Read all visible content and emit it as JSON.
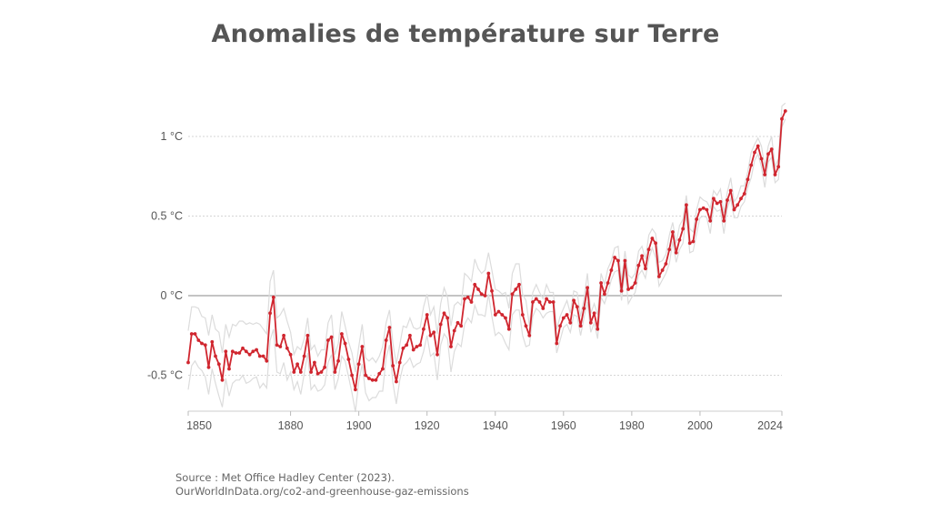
{
  "title": "Anomalies de température sur Terre",
  "source_line1": "Source : Met Office Hadley Center (2023).",
  "source_line2": "OurWorldInData.org/co2-and-greenhouse-gaz-emissions",
  "colors": {
    "line": "#d0262f",
    "band": "#dcdcdc",
    "grid": "#d5d5d5",
    "zero": "#b0b0b0",
    "text": "#555555"
  },
  "chart_data": {
    "type": "line",
    "title": "Anomalies de température sur Terre",
    "xlabel": "",
    "ylabel": "",
    "xlim": [
      1850,
      2024
    ],
    "ylim": [
      -0.7,
      1.4
    ],
    "yticks": [
      -0.5,
      0,
      0.5,
      1
    ],
    "ytick_labels": [
      "-0.5 °C",
      "0 °C",
      "0.5 °C",
      "1 °C"
    ],
    "xticks": [
      1850,
      1880,
      1900,
      1920,
      1940,
      1960,
      1980,
      2000,
      2024
    ],
    "xtick_labels": [
      "1850",
      "1880",
      "1900",
      "1920",
      "1940",
      "1960",
      "1980",
      "2000",
      "2024"
    ],
    "grid": "horizontal dotted",
    "uncertainty_band": true,
    "x_start": 1850,
    "series": [
      {
        "values": [
          -0.42,
          -0.24,
          -0.24,
          -0.28,
          -0.3,
          -0.31,
          -0.45,
          -0.29,
          -0.38,
          -0.43,
          -0.53,
          -0.35,
          -0.46,
          -0.35,
          -0.36,
          -0.36,
          -0.33,
          -0.35,
          -0.37,
          -0.35,
          -0.34,
          -0.38,
          -0.38,
          -0.41,
          -0.11,
          -0.01,
          -0.31,
          -0.32,
          -0.25,
          -0.33,
          -0.37,
          -0.48,
          -0.43,
          -0.48,
          -0.38,
          -0.25,
          -0.48,
          -0.42,
          -0.49,
          -0.48,
          -0.45,
          -0.28,
          -0.26,
          -0.48,
          -0.41,
          -0.24,
          -0.3,
          -0.4,
          -0.5,
          -0.59,
          -0.43,
          -0.32,
          -0.5,
          -0.52,
          -0.53,
          -0.53,
          -0.49,
          -0.46,
          -0.28,
          -0.2,
          -0.44,
          -0.54,
          -0.42,
          -0.33,
          -0.31,
          -0.25,
          -0.34,
          -0.32,
          -0.31,
          -0.21,
          -0.12,
          -0.25,
          -0.23,
          -0.37,
          -0.18,
          -0.11,
          -0.14,
          -0.32,
          -0.22,
          -0.17,
          -0.19,
          -0.02,
          -0.01,
          -0.04,
          0.07,
          0.04,
          0.01,
          0.0,
          0.14,
          0.03,
          -0.12,
          -0.1,
          -0.12,
          -0.14,
          -0.21,
          0.01,
          0.04,
          0.07,
          -0.12,
          -0.19,
          -0.25,
          -0.04,
          -0.02,
          -0.04,
          -0.08,
          -0.02,
          -0.04,
          -0.04,
          -0.3,
          -0.19,
          -0.14,
          -0.12,
          -0.17,
          -0.03,
          -0.07,
          -0.19,
          -0.08,
          0.05,
          -0.17,
          -0.11,
          -0.21,
          0.08,
          0.01,
          0.08,
          0.16,
          0.24,
          0.22,
          0.03,
          0.22,
          0.04,
          0.05,
          0.08,
          0.19,
          0.25,
          0.17,
          0.29,
          0.36,
          0.33,
          0.12,
          0.16,
          0.2,
          0.29,
          0.4,
          0.27,
          0.35,
          0.42,
          0.57,
          0.33,
          0.34,
          0.48,
          0.54,
          0.55,
          0.54,
          0.47,
          0.61,
          0.58,
          0.59,
          0.47,
          0.6,
          0.66,
          0.54,
          0.57,
          0.61,
          0.64,
          0.73,
          0.82,
          0.9,
          0.94,
          0.86,
          0.76,
          0.89,
          0.92,
          0.76,
          0.81,
          1.11,
          1.16
        ]
      }
    ]
  }
}
